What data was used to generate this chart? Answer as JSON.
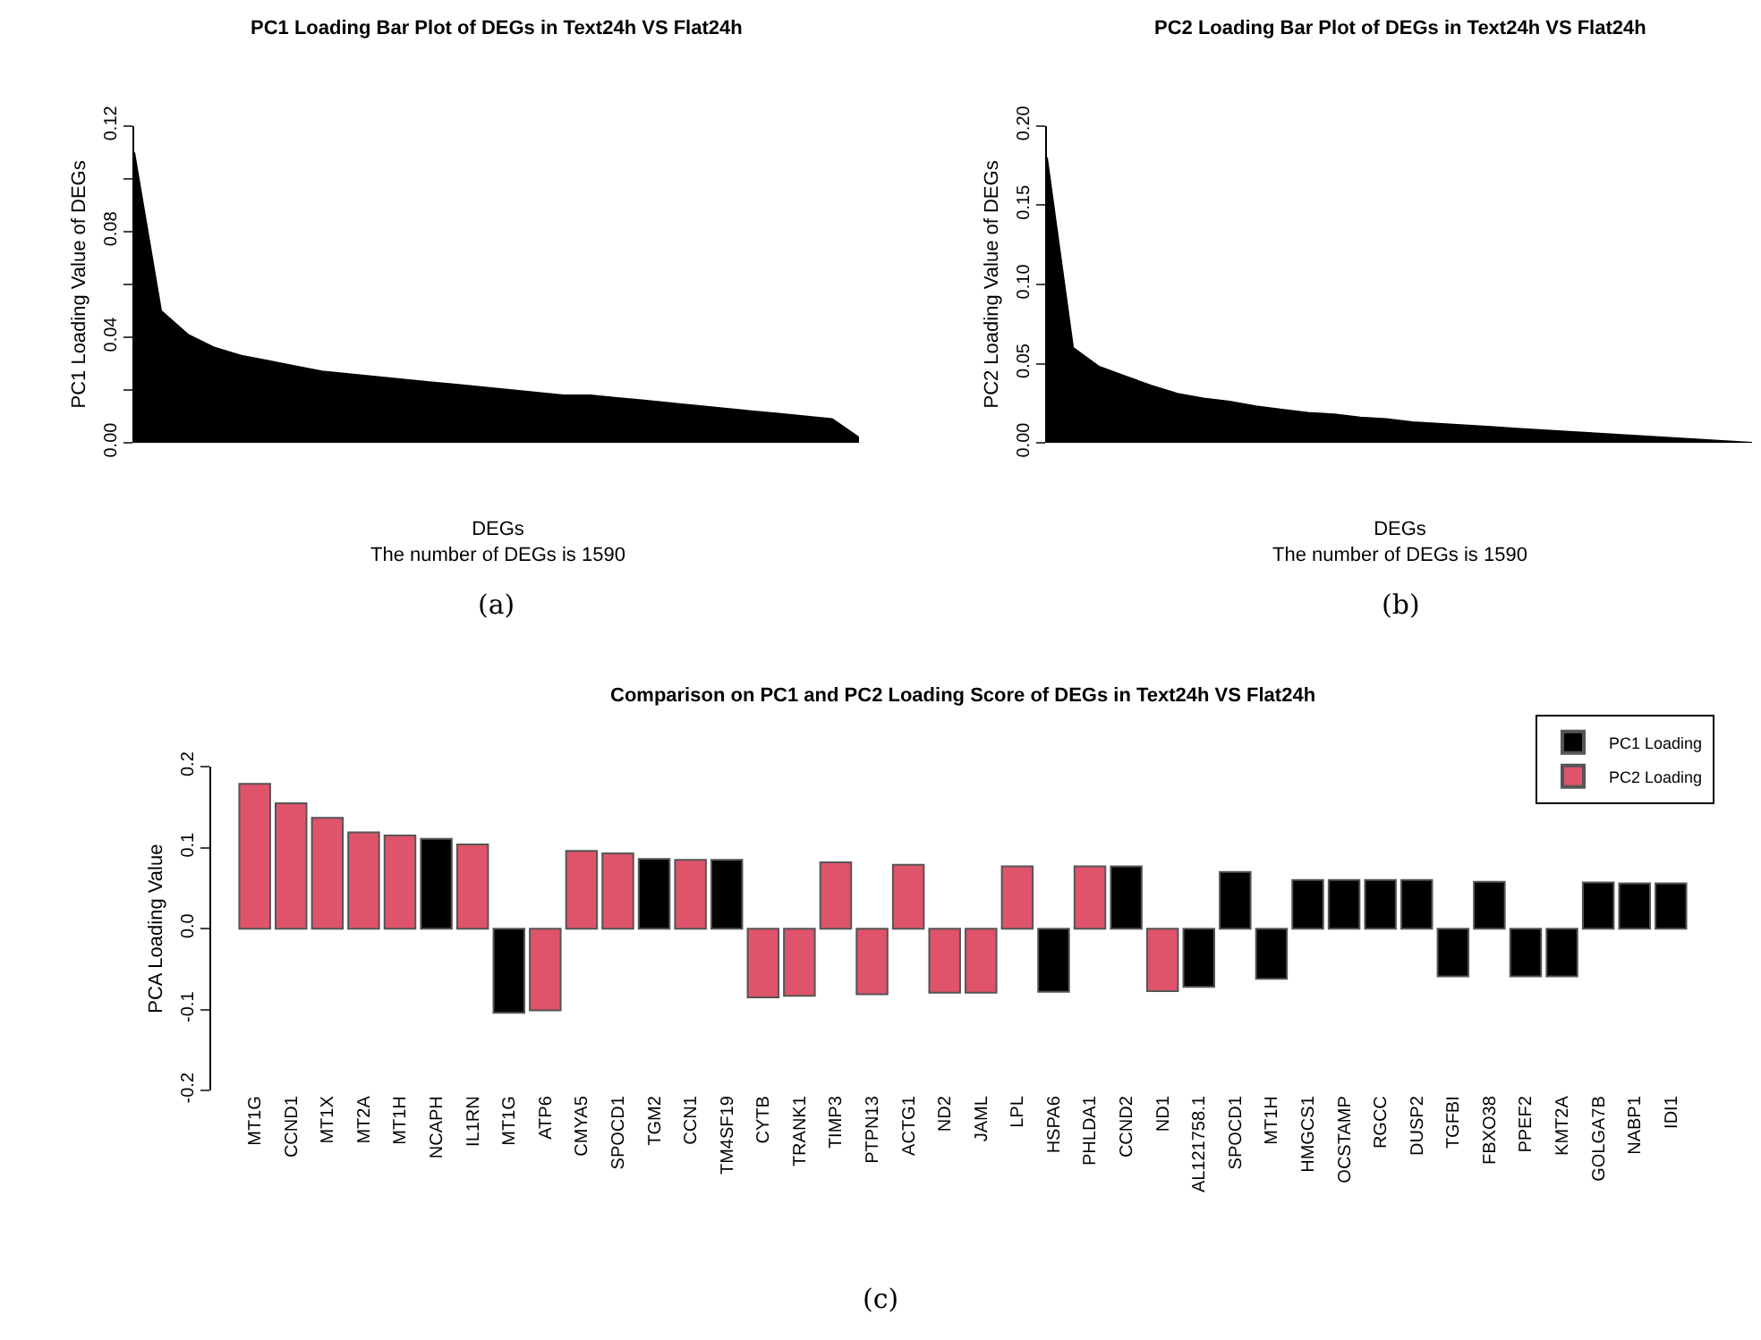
{
  "chart_data": [
    {
      "type": "area",
      "title": "PC1 Loading Bar Plot of DEGs in Text24h VS Flat24h",
      "xlabel": "DEGs",
      "ylabel": "PC1 Loading Value of DEGs",
      "annotations": [
        "The number of DEGs is 1590",
        "(a)"
      ],
      "categories": [
        null,
        null,
        null,
        null,
        null,
        null,
        null,
        null,
        null,
        null,
        null,
        null,
        null,
        null,
        null,
        null,
        null,
        null,
        null,
        null,
        null,
        null,
        null,
        null,
        null,
        null,
        null,
        null
      ],
      "series": [
        {
          "color": "#000000",
          "values": [
            0.11,
            0.05,
            0.041,
            0.036,
            0.033,
            0.031,
            0.029,
            0.027,
            0.026,
            0.025,
            0.024,
            0.023,
            0.022,
            0.021,
            0.02,
            0.019,
            0.018,
            0.018,
            0.017,
            0.016,
            0.015,
            0.014,
            0.013,
            0.012,
            0.011,
            0.01,
            0.009,
            0.002
          ]
        }
      ],
      "ylim": [
        0,
        0.12
      ],
      "yticks": [
        {
          "value": 0,
          "label": "0.00"
        },
        {
          "value": 0.02,
          "label": null
        },
        {
          "value": 0.04,
          "label": "0.04"
        },
        {
          "value": 0.06,
          "label": null
        },
        {
          "value": 0.08,
          "label": "0.08"
        },
        {
          "value": 0.1,
          "label": null
        },
        {
          "value": 0.12,
          "label": "0.12"
        }
      ],
      "tick_labels": "y",
      "legend": false
    },
    {
      "type": "area",
      "title": "PC2 Loading Bar Plot of DEGs in Text24h VS Flat24h",
      "xlabel": "DEGs",
      "ylabel": "PC2 Loading Value of DEGs",
      "annotations": [
        "The number of DEGs is 1590",
        "(b)"
      ],
      "categories": [
        null,
        null,
        null,
        null,
        null,
        null,
        null,
        null,
        null,
        null,
        null,
        null,
        null,
        null,
        null,
        null,
        null,
        null,
        null,
        null,
        null,
        null,
        null,
        null,
        null,
        null,
        null,
        null
      ],
      "series": [
        {
          "color": "#000000",
          "values": [
            0.18,
            0.06,
            0.048,
            0.042,
            0.036,
            0.031,
            0.028,
            0.026,
            0.023,
            0.021,
            0.019,
            0.018,
            0.016,
            0.015,
            0.013,
            0.012,
            0.011,
            0.01,
            0.009,
            0.008,
            0.007,
            0.006,
            0.005,
            0.004,
            0.003,
            0.002,
            0.001,
            0.0
          ]
        }
      ],
      "ylim": [
        0,
        0.2
      ],
      "yticks": [
        {
          "value": 0,
          "label": "0.00"
        },
        {
          "value": 0.05,
          "label": "0.05"
        },
        {
          "value": 0.1,
          "label": "0.10"
        },
        {
          "value": 0.15,
          "label": "0.15"
        },
        {
          "value": 0.2,
          "label": "0.20"
        }
      ],
      "tick_labels": "y",
      "legend": false
    },
    {
      "type": "bar",
      "title": "Comparison on PC1 and PC2 Loading Score of DEGs in Text24h VS Flat24h",
      "ylabel": "PCA Loading Value",
      "annotations": [
        "(c)"
      ],
      "categories": [
        "MT1G",
        "CCND1",
        "MT1X",
        "MT2A",
        "MT1H",
        "NCAPH",
        "IL1RN",
        "MT1G",
        "ATP6",
        "CMYA5",
        "SPOCD1",
        "TGM2",
        "CCN1",
        "TM4SF19",
        "CYTB",
        "TRANK1",
        "TIMP3",
        "PTPN13",
        "ACTG1",
        "ND2",
        "JAML",
        "LPL",
        "HSPA6",
        "PHLDA1",
        "CCND2",
        "ND1",
        "AL121758.1",
        "SPOCD1",
        "MT1H",
        "HMGCS1",
        "OCSTAMP",
        "RGCC",
        "DUSP2",
        "TGFBI",
        "FBXO38",
        "PPEF2",
        "KMT2A",
        "GOLGA7B",
        "NABP1",
        "IDI1"
      ],
      "series": [
        {
          "name": "PC1 Loading",
          "color": "#000000",
          "values": [
            null,
            null,
            null,
            null,
            null,
            0.111,
            null,
            -0.104,
            null,
            null,
            null,
            0.086,
            null,
            0.085,
            null,
            null,
            null,
            null,
            null,
            null,
            null,
            null,
            -0.078,
            null,
            0.077,
            null,
            -0.072,
            0.07,
            -0.062,
            0.06,
            0.06,
            0.06,
            0.06,
            -0.059,
            0.058,
            -0.059,
            -0.059,
            0.057,
            0.056,
            0.056
          ]
        },
        {
          "name": "PC2 Loading",
          "color": "#df536b",
          "values": [
            0.179,
            0.155,
            0.137,
            0.119,
            0.115,
            null,
            0.104,
            null,
            -0.101,
            0.096,
            0.093,
            null,
            0.085,
            null,
            -0.085,
            -0.083,
            0.082,
            -0.081,
            0.079,
            -0.079,
            -0.079,
            0.077,
            null,
            0.077,
            null,
            -0.077,
            null,
            null,
            null,
            null,
            null,
            null,
            null,
            null,
            null,
            null,
            null,
            null,
            null,
            null
          ]
        }
      ],
      "ylim": [
        -0.2,
        0.2
      ],
      "yticks": [
        {
          "value": -0.2,
          "label": "-0.2"
        },
        {
          "value": -0.1,
          "label": "-0.1"
        },
        {
          "value": 0.0,
          "label": "0.0"
        },
        {
          "value": 0.1,
          "label": "0.1"
        },
        {
          "value": 0.2,
          "label": "0.2"
        }
      ],
      "legend": "top right"
    }
  ]
}
